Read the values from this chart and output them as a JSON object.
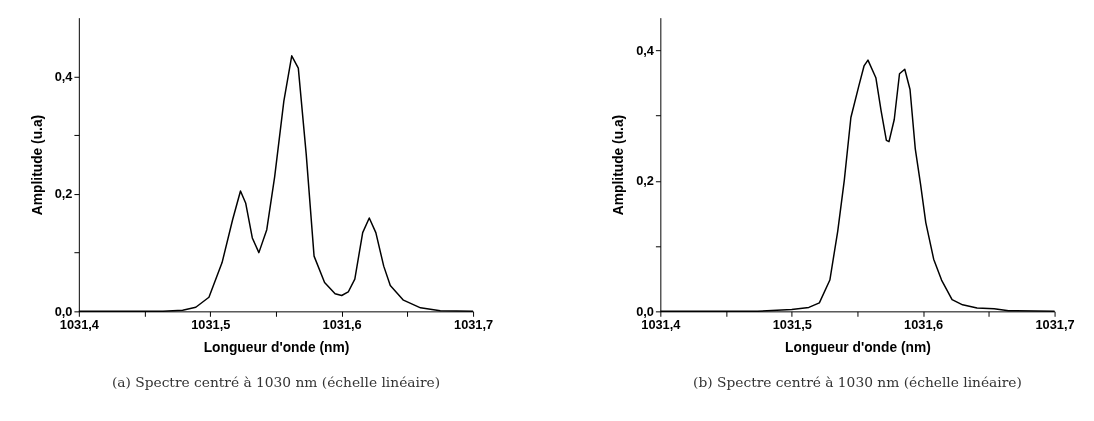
{
  "chart_data": [
    {
      "type": "line",
      "xlabel": "Longueur d'onde (nm)",
      "ylabel": "Amplitude (u.a)",
      "annotations": [
        "(a) Spectre centré à 1030 nm (échelle linéaire)"
      ],
      "xlim": [
        1031.4,
        1031.7
      ],
      "ylim": [
        0,
        0.5
      ],
      "xticks": [
        {
          "value": 1031.4,
          "label": "1031,4"
        },
        {
          "value": 1031.45,
          "label": null
        },
        {
          "value": 1031.5,
          "label": "1031,5"
        },
        {
          "value": 1031.55,
          "label": null
        },
        {
          "value": 1031.6,
          "label": "1031,6"
        },
        {
          "value": 1031.65,
          "label": null
        },
        {
          "value": 1031.7,
          "label": "1031,7"
        }
      ],
      "yticks": [
        {
          "value": 0,
          "label": "0,0"
        },
        {
          "value": 0.1,
          "label": null
        },
        {
          "value": 0.2,
          "label": "0,2"
        },
        {
          "value": 0.3,
          "label": null
        },
        {
          "value": 0.4,
          "label": "0,4"
        }
      ],
      "grid": false,
      "marker": "none",
      "line_style": "solid",
      "series": [
        {
          "color": "#000000",
          "x": [
            1031.4,
            1031.464,
            1031.479,
            1031.489,
            1031.499,
            1031.509,
            1031.517,
            1031.523,
            1031.527,
            1031.532,
            1031.537,
            1031.543,
            1031.549,
            1031.556,
            1031.562,
            1031.567,
            1031.573,
            1031.579,
            1031.587,
            1031.595,
            1031.6,
            1031.605,
            1031.61,
            1031.616,
            1031.621,
            1031.626,
            1031.632,
            1031.637,
            1031.647,
            1031.66,
            1031.675,
            1031.7
          ],
          "values": [
            0,
            0,
            0.002,
            0.007,
            0.024,
            0.083,
            0.156,
            0.205,
            0.184,
            0.125,
            0.1,
            0.139,
            0.229,
            0.358,
            0.435,
            0.414,
            0.268,
            0.094,
            0.049,
            0.03,
            0.027,
            0.033,
            0.055,
            0.134,
            0.159,
            0.134,
            0.077,
            0.044,
            0.019,
            0.006,
            0.001,
            0
          ]
        }
      ]
    },
    {
      "type": "line",
      "xlabel": "Longueur d'onde (nm)",
      "ylabel": "Amplitude (u.a)",
      "annotations": [
        "(b) Spectre centré à 1030 nm (échelle linéaire)"
      ],
      "xlim": [
        1031.4,
        1031.7
      ],
      "ylim": [
        0,
        0.45
      ],
      "xticks": [
        {
          "value": 1031.4,
          "label": "1031,4"
        },
        {
          "value": 1031.45,
          "label": null
        },
        {
          "value": 1031.5,
          "label": "1031,5"
        },
        {
          "value": 1031.55,
          "label": null
        },
        {
          "value": 1031.6,
          "label": "1031,6"
        },
        {
          "value": 1031.65,
          "label": null
        },
        {
          "value": 1031.7,
          "label": "1031,7"
        }
      ],
      "yticks": [
        {
          "value": 0,
          "label": "0,0"
        },
        {
          "value": 0.1,
          "label": null
        },
        {
          "value": 0.2,
          "label": "0,2"
        },
        {
          "value": 0.3,
          "label": null
        },
        {
          "value": 0.4,
          "label": "0,4"
        }
      ],
      "grid": false,
      "marker": "none",
      "line_style": "solid",
      "series": [
        {
          "color": "#000000",
          "x": [
            1031.4,
            1031.474,
            1031.5,
            1031.513,
            1031.521,
            1031.529,
            1031.535,
            1031.54,
            1031.545,
            1031.551,
            1031.555,
            1031.558,
            1031.564,
            1031.568,
            1031.572,
            1031.574,
            1031.578,
            1031.582,
            1031.586,
            1031.59,
            1031.594,
            1031.598,
            1031.602,
            1031.608,
            1031.614,
            1031.622,
            1031.63,
            1031.641,
            1031.654,
            1031.665,
            1031.7
          ],
          "values": [
            0,
            0,
            0.003,
            0.006,
            0.013,
            0.048,
            0.123,
            0.201,
            0.297,
            0.345,
            0.376,
            0.385,
            0.358,
            0.307,
            0.262,
            0.26,
            0.294,
            0.364,
            0.371,
            0.34,
            0.249,
            0.195,
            0.136,
            0.08,
            0.048,
            0.018,
            0.01,
            0.005,
            0.004,
            0.001,
            0
          ]
        }
      ]
    }
  ]
}
